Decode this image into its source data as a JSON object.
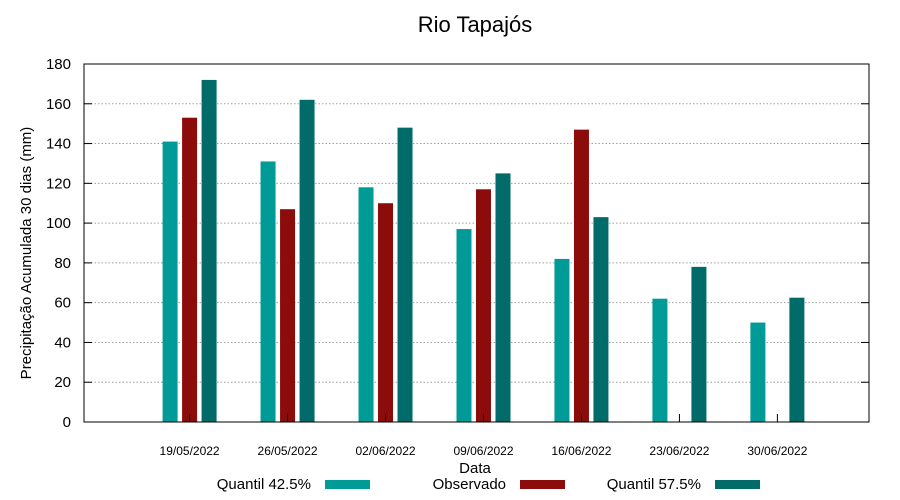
{
  "chart_data": {
    "type": "bar",
    "title": "Rio Tapajós",
    "xlabel": "Data",
    "ylabel": "Precipitação Acumulada 30 dias (mm)",
    "ylim": [
      0,
      180
    ],
    "yticks": [
      0,
      20,
      40,
      60,
      80,
      100,
      120,
      140,
      160,
      180
    ],
    "grid": true,
    "legend_position": "bottom",
    "categories": [
      "19/05/2022",
      "26/05/2022",
      "02/06/2022",
      "09/06/2022",
      "16/06/2022",
      "23/06/2022",
      "30/06/2022"
    ],
    "series": [
      {
        "name": "Quantil 42.5%",
        "color": "#009a97",
        "values": [
          141,
          131,
          118,
          97,
          82,
          62,
          50
        ]
      },
      {
        "name": "Observado",
        "color": "#8c0c0c",
        "values": [
          153,
          107,
          110,
          117,
          147,
          null,
          null
        ]
      },
      {
        "name": "Quantil 57.5%",
        "color": "#006b68",
        "values": [
          172,
          162,
          148,
          125,
          103,
          78,
          62.5
        ]
      }
    ]
  }
}
